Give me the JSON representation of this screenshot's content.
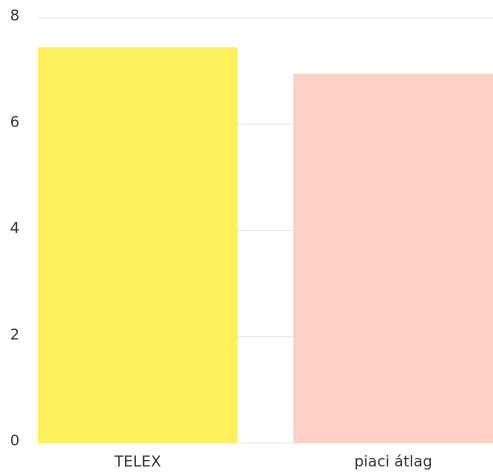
{
  "chart_data": {
    "type": "bar",
    "categories": [
      "TELEX",
      "piaci átlag"
    ],
    "values": [
      7.45,
      6.95
    ],
    "colors": [
      "#fdf05a",
      "#fdd0c5"
    ],
    "ylim": [
      0,
      8
    ],
    "yticks": [
      0,
      2,
      4,
      6,
      8
    ],
    "grid": true
  }
}
